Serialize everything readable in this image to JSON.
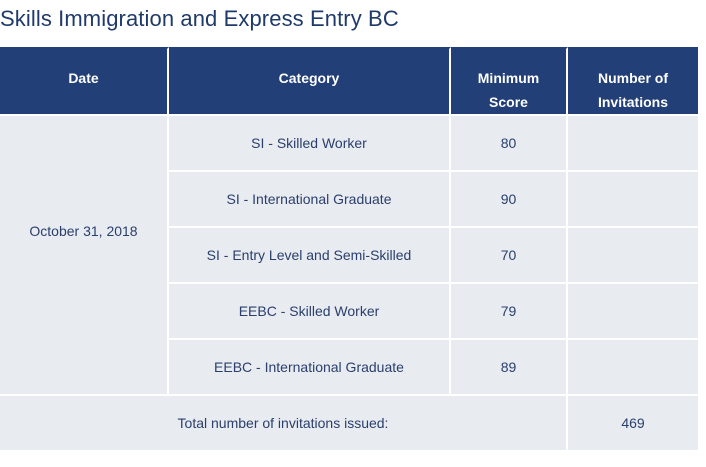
{
  "title": "Skills Immigration and Express Entry BC",
  "headers": {
    "date": "Date",
    "category": "Category",
    "min_score_line1": "Minimum",
    "min_score_line2": "Score",
    "invitations_line1": "Number of",
    "invitations_line2": "Invitations"
  },
  "draw_date": "October 31, 2018",
  "rows": [
    {
      "category": "SI - Skilled Worker",
      "score": "80",
      "invitations": ""
    },
    {
      "category": "SI - International Graduate",
      "score": "90",
      "invitations": ""
    },
    {
      "category": "SI - Entry Level and Semi-Skilled",
      "score": "70",
      "invitations": ""
    },
    {
      "category": "EEBC - Skilled Worker",
      "score": "79",
      "invitations": ""
    },
    {
      "category": "EEBC - International Graduate",
      "score": "89",
      "invitations": ""
    }
  ],
  "total": {
    "label": "Total number of invitations issued:",
    "value": "469"
  },
  "colors": {
    "header_bg": "#223f77",
    "cell_bg": "#e8ebf0",
    "title_text": "#1f3a6b"
  }
}
